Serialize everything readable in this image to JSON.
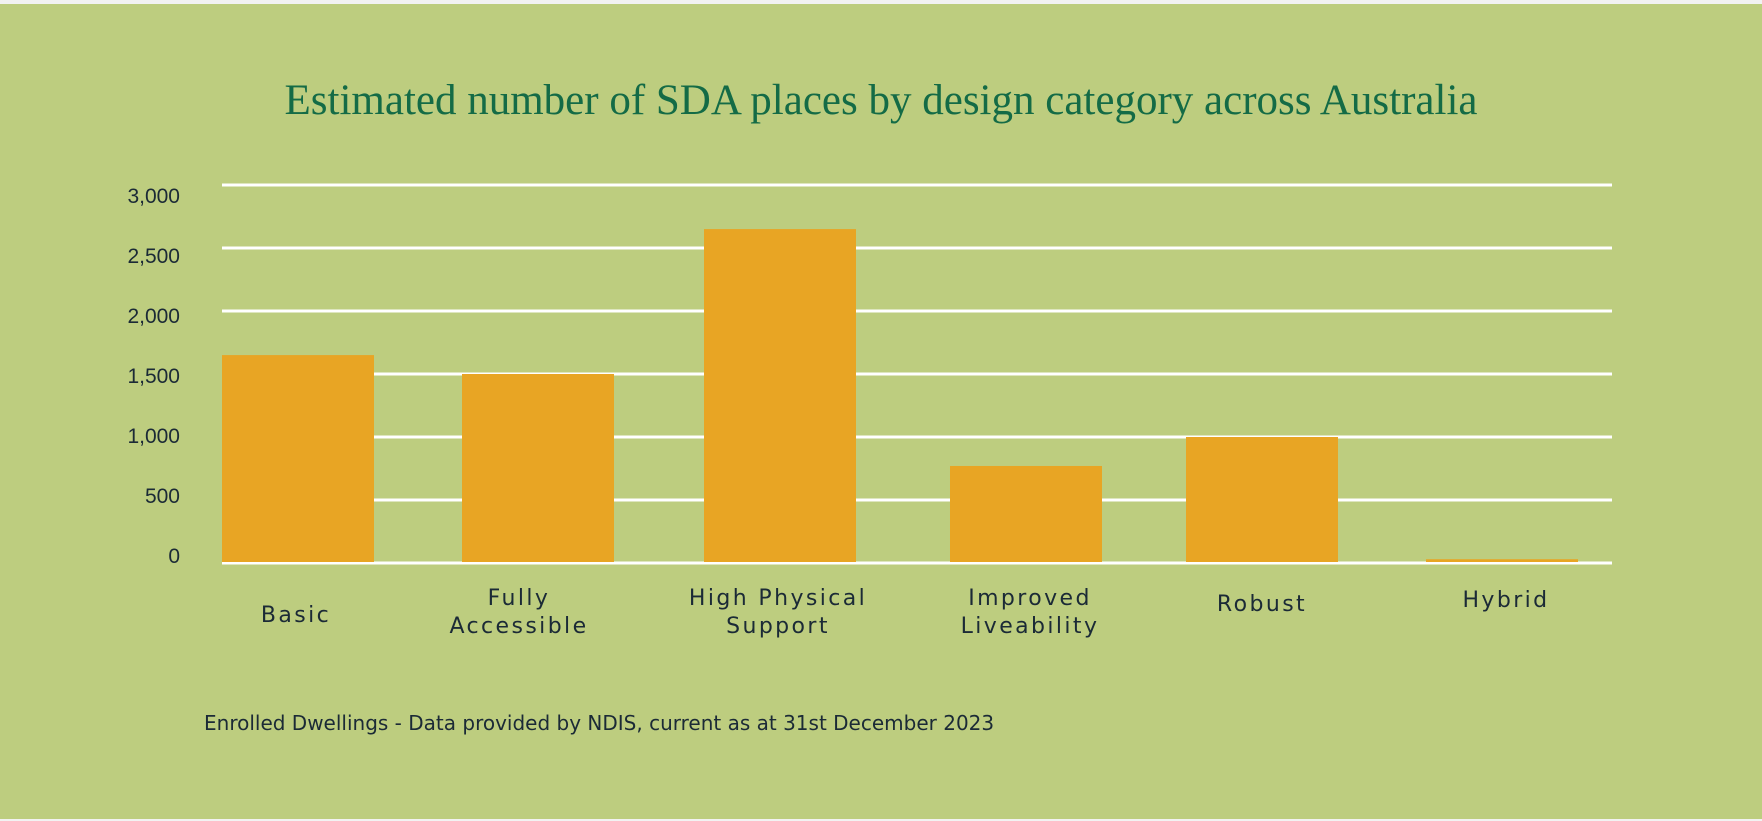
{
  "colors": {
    "background": "#bdcd7f",
    "frame": "#f2f2f2",
    "bar": "#e8a524",
    "gridline": "#ffffff",
    "title": "#146b46",
    "text": "#1b2a36"
  },
  "chart_data": {
    "type": "bar",
    "title": "Estimated number of SDA places by design category across Australia",
    "xlabel": "",
    "ylabel": "",
    "categories": [
      "Basic",
      "Fully Accessible",
      "High Physical Support",
      "Improved Liveability",
      "Robust",
      "Hybrid"
    ],
    "category_lines": [
      [
        "Basic"
      ],
      [
        "Fully",
        "Accessible"
      ],
      [
        "High Physical",
        "Support"
      ],
      [
        "Improved",
        "Liveability"
      ],
      [
        "Robust"
      ],
      [
        "Hybrid"
      ]
    ],
    "values": [
      1650,
      1500,
      2650,
      770,
      1000,
      30
    ],
    "ylim": [
      0,
      3000
    ],
    "yticks": [
      0,
      500,
      1000,
      1500,
      2000,
      2500,
      3000
    ],
    "ytick_labels": [
      "0",
      "500",
      "1,000",
      "1,500",
      "2,000",
      "2,500",
      "3,000"
    ],
    "grid": true,
    "legend": "none",
    "annotation": "Enrolled Dwellings - Data provided by NDIS, current as at 31st December 2023"
  }
}
